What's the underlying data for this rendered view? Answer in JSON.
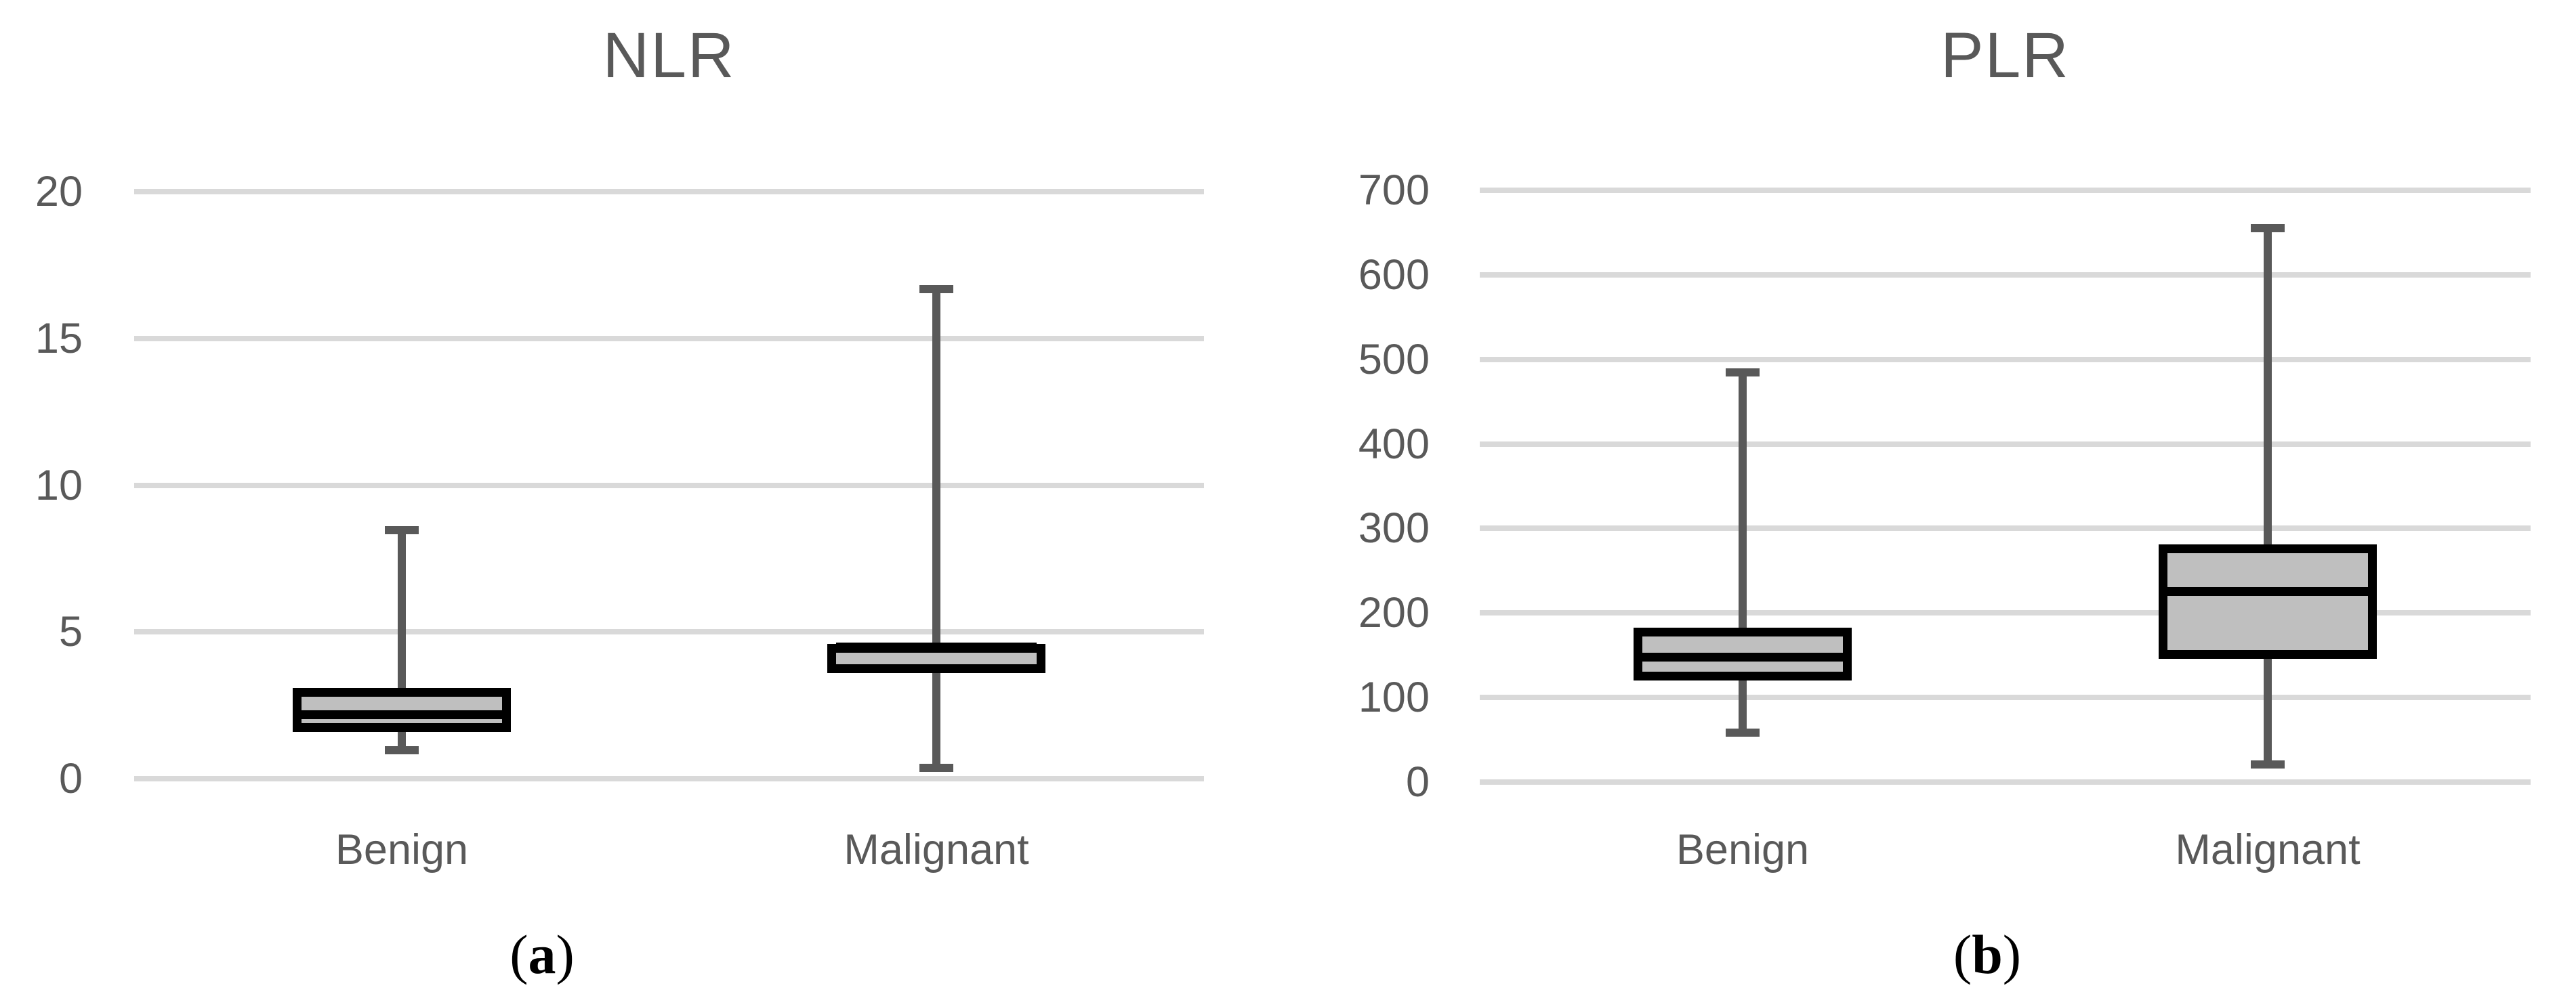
{
  "figure": {
    "background": "#ffffff",
    "text_color": "#595959",
    "caption_color": "#000000"
  },
  "chart_data": [
    {
      "type": "box",
      "title": "NLR",
      "categories": [
        "Benign",
        "Malignant"
      ],
      "xlabel": "",
      "ylabel": "",
      "ylim": [
        0,
        20
      ],
      "yticks": [
        0,
        5,
        10,
        15,
        20
      ],
      "grid": true,
      "legend": false,
      "series": [
        {
          "name": "Benign",
          "min": 1.0,
          "q1": 1.6,
          "median": 2.2,
          "q3": 3.1,
          "max": 8.5
        },
        {
          "name": "Malignant",
          "min": 0.4,
          "q1": 3.6,
          "median": 4.5,
          "q3": 4.6,
          "max": 16.7
        }
      ],
      "caption": {
        "open": "(",
        "letter": "a",
        "close": ")"
      },
      "colors": {
        "box_fill": "#bfbfbf",
        "box_border": "#000000",
        "median": "#000000",
        "whisker": "#595959",
        "gridline": "#d9d9d9",
        "text": "#595959"
      }
    },
    {
      "type": "box",
      "title": "PLR",
      "categories": [
        "Benign",
        "Malignant"
      ],
      "xlabel": "",
      "ylabel": "",
      "ylim": [
        0,
        700
      ],
      "yticks": [
        0,
        100,
        200,
        300,
        400,
        500,
        600,
        700
      ],
      "grid": true,
      "legend": false,
      "series": [
        {
          "name": "Benign",
          "min": 59,
          "q1": 120,
          "median": 148,
          "q3": 183,
          "max": 485
        },
        {
          "name": "Malignant",
          "min": 22,
          "q1": 146,
          "median": 226,
          "q3": 281,
          "max": 656
        }
      ],
      "caption": {
        "open": "(",
        "letter": "b",
        "close": ")"
      },
      "colors": {
        "box_fill": "#bfbfbf",
        "box_border": "#000000",
        "median": "#000000",
        "whisker": "#595959",
        "gridline": "#d9d9d9",
        "text": "#595959"
      }
    }
  ]
}
